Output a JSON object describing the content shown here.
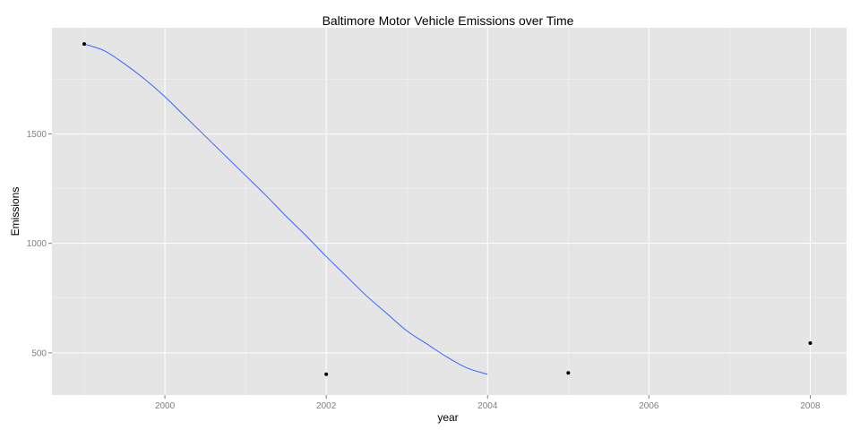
{
  "chart_data": {
    "type": "line",
    "title": "Baltimore Motor Vehicle Emissions over Time",
    "xlabel": "year",
    "ylabel": "Emissions",
    "x": [
      1999,
      2002,
      2005,
      2008
    ],
    "series": [
      {
        "values": [
          1911.0,
          402.4,
          408.3,
          544.5
        ]
      }
    ],
    "smooth_curve": [
      [
        1999.0,
        1911
      ],
      [
        1999.25,
        1880
      ],
      [
        1999.5,
        1820
      ],
      [
        1999.75,
        1750
      ],
      [
        2000.0,
        1670
      ],
      [
        2000.25,
        1580
      ],
      [
        2000.5,
        1490
      ],
      [
        2000.75,
        1400
      ],
      [
        2001.0,
        1310
      ],
      [
        2001.25,
        1220
      ],
      [
        2001.5,
        1125
      ],
      [
        2001.75,
        1035
      ],
      [
        2002.0,
        940
      ],
      [
        2002.25,
        850
      ],
      [
        2002.5,
        760
      ],
      [
        2002.75,
        680
      ],
      [
        2003.0,
        600
      ],
      [
        2003.25,
        540
      ],
      [
        2003.5,
        480
      ],
      [
        2003.75,
        430
      ],
      [
        2004.0,
        402
      ]
    ],
    "xlim": [
      1998.6,
      2008.45
    ],
    "ylim": [
      307,
      1985
    ],
    "x_ticks": [
      2000,
      2002,
      2004,
      2006,
      2008
    ],
    "y_ticks": [
      500,
      1000,
      1500
    ],
    "grid": true,
    "colors": {
      "panel": "#e5e5e5",
      "grid": "#ffffff",
      "line": "#3366ff",
      "point": "#000000"
    }
  }
}
